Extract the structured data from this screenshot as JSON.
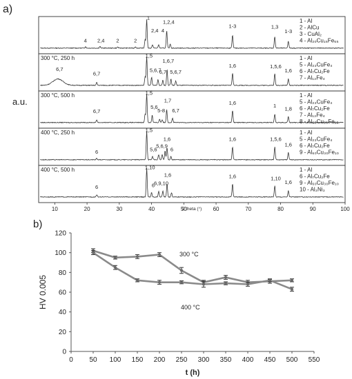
{
  "panel_a": {
    "label": "a)",
    "ylabel": "a.u.",
    "xlabel": "2 theta (°)",
    "xlim": [
      5,
      100
    ],
    "xticks": [
      10,
      20,
      30,
      40,
      50,
      60,
      70,
      80,
      90,
      100
    ],
    "ticks_text": [
      "10",
      "20",
      "30",
      "40",
      "50",
      "60",
      "70",
      "80",
      "90",
      "100"
    ],
    "patterns": [
      {
        "condition": "",
        "legend": [
          "1 - Al",
          "2 - AlCu",
          "3 - CuAl2",
          "4 - Al20Cu15Fe65"
        ],
        "peaks": [
          [
            38.5,
            1.0
          ],
          [
            40.3,
            0.12
          ],
          [
            42.2,
            0.12
          ],
          [
            44.7,
            0.6
          ],
          [
            45.8,
            0.15
          ],
          [
            65.1,
            0.45
          ],
          [
            78.2,
            0.4
          ],
          [
            82.4,
            0.25
          ],
          [
            19.5,
            0.05
          ],
          [
            24.0,
            0.06
          ],
          [
            29.5,
            0.04
          ],
          [
            35.0,
            0.05
          ],
          [
            38.0,
            0.3
          ]
        ],
        "labels": [
          {
            "x": 39,
            "y": 0.99,
            "t": "1"
          },
          {
            "x": 41,
            "y": 0.55,
            "t": "2,4"
          },
          {
            "x": 43.5,
            "y": 0.55,
            "t": "4"
          },
          {
            "x": 45.3,
            "y": 0.84,
            "t": "1,2,4"
          },
          {
            "x": 65.1,
            "y": 0.7,
            "t": "1-3"
          },
          {
            "x": 78.2,
            "y": 0.68,
            "t": "1,3"
          },
          {
            "x": 82.4,
            "y": 0.52,
            "t": "1-3"
          },
          {
            "x": 19.5,
            "y": 0.2,
            "t": "4"
          },
          {
            "x": 24.3,
            "y": 0.2,
            "t": "2,4"
          },
          {
            "x": 29.5,
            "y": 0.2,
            "t": "2"
          },
          {
            "x": 35,
            "y": 0.2,
            "t": "2"
          }
        ]
      },
      {
        "condition": "300 °C, 250 h",
        "legend": [
          "1 - Al",
          "5 - Al23CuFe4",
          "6 - Al7Cu2Fe",
          "7 - Al13Fe4"
        ],
        "peaks": [
          [
            38.5,
            1.0
          ],
          [
            40.0,
            0.28
          ],
          [
            42.0,
            0.2
          ],
          [
            43.5,
            0.18
          ],
          [
            44.8,
            0.55
          ],
          [
            46.0,
            0.22
          ],
          [
            47.5,
            0.15
          ],
          [
            65.1,
            0.42
          ],
          [
            78.2,
            0.4
          ],
          [
            82.4,
            0.22
          ],
          [
            23.0,
            0.1
          ],
          [
            38.0,
            0.3
          ]
        ],
        "broad": [
          [
            11,
            0.22,
            2.2
          ]
        ],
        "labels": [
          {
            "x": 39.2,
            "y": 0.97,
            "t": "1,5"
          },
          {
            "x": 41.2,
            "y": 0.46,
            "t": "5,6,7"
          },
          {
            "x": 43.5,
            "y": 0.4,
            "t": "6,7"
          },
          {
            "x": 45.2,
            "y": 0.78,
            "t": "1,6,7"
          },
          {
            "x": 47.5,
            "y": 0.4,
            "t": "5,6,7"
          },
          {
            "x": 65.1,
            "y": 0.62,
            "t": "1,6"
          },
          {
            "x": 78.5,
            "y": 0.6,
            "t": "1,5,6"
          },
          {
            "x": 82.4,
            "y": 0.45,
            "t": "1,6"
          },
          {
            "x": 11.5,
            "y": 0.5,
            "t": "6,7"
          },
          {
            "x": 23,
            "y": 0.35,
            "t": "6,7"
          }
        ]
      },
      {
        "condition": "300 °C, 500 h",
        "legend": [
          "1 - Al",
          "5 - Al23CuFe4",
          "6 - Al7Cu2Fe",
          "7 - Al13Fe4",
          "8 - Al65Cu20Fe15"
        ],
        "peaks": [
          [
            38.5,
            1.0
          ],
          [
            40.2,
            0.25
          ],
          [
            42.5,
            0.12
          ],
          [
            43.3,
            0.1
          ],
          [
            44.7,
            0.45
          ],
          [
            46.5,
            0.15
          ],
          [
            65.1,
            0.42
          ],
          [
            78.2,
            0.3
          ],
          [
            82.4,
            0.2
          ],
          [
            23.0,
            0.1
          ],
          [
            38.0,
            0.3
          ]
        ],
        "labels": [
          {
            "x": 39.2,
            "y": 0.97,
            "t": "1,5"
          },
          {
            "x": 40.8,
            "y": 0.48,
            "t": "5,6"
          },
          {
            "x": 43.0,
            "y": 0.36,
            "t": "5-8"
          },
          {
            "x": 45.0,
            "y": 0.7,
            "t": "1,7"
          },
          {
            "x": 47.5,
            "y": 0.36,
            "t": "6,7"
          },
          {
            "x": 65.1,
            "y": 0.62,
            "t": "1,6"
          },
          {
            "x": 78.2,
            "y": 0.52,
            "t": "1"
          },
          {
            "x": 82.4,
            "y": 0.42,
            "t": "1,8"
          },
          {
            "x": 23,
            "y": 0.33,
            "t": "6,7"
          }
        ]
      },
      {
        "condition": "400 °C, 250 h",
        "legend": [
          "1 - Al",
          "5 - Al23CuFe4",
          "6 - Al7Cu2Fe",
          "9 - Al60Cu30Fe10"
        ],
        "peaks": [
          [
            38.5,
            1.0
          ],
          [
            40.3,
            0.12
          ],
          [
            42.2,
            0.18
          ],
          [
            43.3,
            0.18
          ],
          [
            44.2,
            0.3
          ],
          [
            44.8,
            0.42
          ],
          [
            46.0,
            0.12
          ],
          [
            65.1,
            0.45
          ],
          [
            78.2,
            0.45
          ],
          [
            82.4,
            0.25
          ],
          [
            23.0,
            0.05
          ]
        ],
        "labels": [
          {
            "x": 39.2,
            "y": 0.97,
            "t": "1,5"
          },
          {
            "x": 40.6,
            "y": 0.3,
            "t": "5,6"
          },
          {
            "x": 43.2,
            "y": 0.42,
            "t": "5,6,9"
          },
          {
            "x": 44.8,
            "y": 0.66,
            "t": "1,6"
          },
          {
            "x": 46.3,
            "y": 0.3,
            "t": "6"
          },
          {
            "x": 65.1,
            "y": 0.66,
            "t": "1,6"
          },
          {
            "x": 78.5,
            "y": 0.66,
            "t": "1,5,6"
          },
          {
            "x": 82.4,
            "y": 0.47,
            "t": "1,6"
          },
          {
            "x": 23,
            "y": 0.22,
            "t": "6"
          }
        ]
      },
      {
        "condition": "400 °C, 500 h",
        "legend": [
          "1 - Al",
          "6 - Al7Cu2Fe",
          "9 - Al60Cu30Fe10",
          "10 - Al3Ni3"
        ],
        "peaks": [
          [
            38.5,
            1.0
          ],
          [
            40.0,
            0.15
          ],
          [
            42.2,
            0.2
          ],
          [
            43.5,
            0.2
          ],
          [
            44.8,
            0.45
          ],
          [
            46.2,
            0.15
          ],
          [
            65.1,
            0.45
          ],
          [
            78.2,
            0.38
          ],
          [
            82.4,
            0.22
          ],
          [
            23.0,
            0.08
          ]
        ],
        "labels": [
          {
            "x": 39.5,
            "y": 0.97,
            "t": "1,10"
          },
          {
            "x": 40.5,
            "y": 0.35,
            "t": "6"
          },
          {
            "x": 43.0,
            "y": 0.42,
            "t": "6,9,10"
          },
          {
            "x": 45.0,
            "y": 0.7,
            "t": "1,6"
          },
          {
            "x": 65.1,
            "y": 0.66,
            "t": "1,6"
          },
          {
            "x": 78.5,
            "y": 0.58,
            "t": "1,10"
          },
          {
            "x": 82.4,
            "y": 0.45,
            "t": "1,6"
          },
          {
            "x": 23,
            "y": 0.28,
            "t": "6"
          }
        ]
      }
    ]
  },
  "chart_data": {
    "type": "line",
    "panel_label": "b)",
    "xlabel": "t (h)",
    "ylabel": "HV 0.005",
    "xlim": [
      0,
      550
    ],
    "ylim": [
      0,
      120
    ],
    "xticks": [
      0,
      50,
      100,
      150,
      200,
      250,
      300,
      350,
      400,
      450,
      500,
      550
    ],
    "yticks": [
      0,
      20,
      40,
      60,
      80,
      100,
      120
    ],
    "x": [
      50,
      100,
      150,
      200,
      250,
      300,
      350,
      400,
      450,
      500
    ],
    "series": [
      {
        "name": "300 °C",
        "values": [
          102,
          95,
          96,
          98,
          82,
          70,
          75,
          70,
          71,
          72
        ],
        "errors": [
          2,
          1.5,
          2,
          2,
          3,
          2,
          2,
          2,
          2,
          1.5
        ]
      },
      {
        "name": "400 °C",
        "values": [
          100,
          85,
          72,
          70,
          70,
          68,
          69,
          68,
          72,
          63
        ],
        "errors": [
          2,
          2,
          1.5,
          2,
          1.5,
          3,
          1.5,
          2,
          1.5,
          2
        ]
      }
    ],
    "grid": false,
    "legend": "inline labels"
  }
}
